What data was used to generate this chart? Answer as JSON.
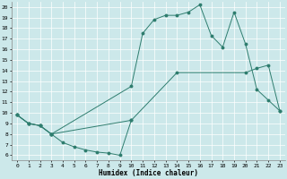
{
  "xlabel": "Humidex (Indice chaleur)",
  "xlim": [
    -0.5,
    23.5
  ],
  "ylim": [
    5.5,
    20.5
  ],
  "yticks": [
    6,
    7,
    8,
    9,
    10,
    11,
    12,
    13,
    14,
    15,
    16,
    17,
    18,
    19,
    20
  ],
  "xticks": [
    0,
    1,
    2,
    3,
    4,
    5,
    6,
    7,
    8,
    9,
    10,
    11,
    12,
    13,
    14,
    15,
    16,
    17,
    18,
    19,
    20,
    21,
    22,
    23
  ],
  "bg_color": "#cce8ea",
  "line_color": "#2e7d6e",
  "curves": [
    {
      "x": [
        0,
        1,
        2,
        3,
        4,
        5,
        6,
        7,
        8,
        9,
        10
      ],
      "y": [
        9.8,
        9.0,
        8.8,
        8.0,
        7.2,
        6.8,
        6.5,
        6.3,
        6.2,
        6.0,
        9.3
      ]
    },
    {
      "x": [
        0,
        1,
        2,
        3,
        10,
        11,
        12,
        13,
        14,
        15,
        16,
        17,
        18,
        19,
        20,
        21,
        22,
        23
      ],
      "y": [
        9.8,
        9.0,
        8.8,
        8.0,
        12.5,
        17.5,
        18.8,
        19.2,
        19.2,
        19.5,
        20.2,
        17.3,
        16.2,
        19.5,
        16.5,
        12.2,
        11.2,
        10.2
      ]
    },
    {
      "x": [
        0,
        1,
        2,
        3,
        10,
        14,
        20,
        21,
        22,
        23
      ],
      "y": [
        9.8,
        9.0,
        8.8,
        8.0,
        9.3,
        13.8,
        13.8,
        14.2,
        14.5,
        10.2
      ]
    }
  ]
}
